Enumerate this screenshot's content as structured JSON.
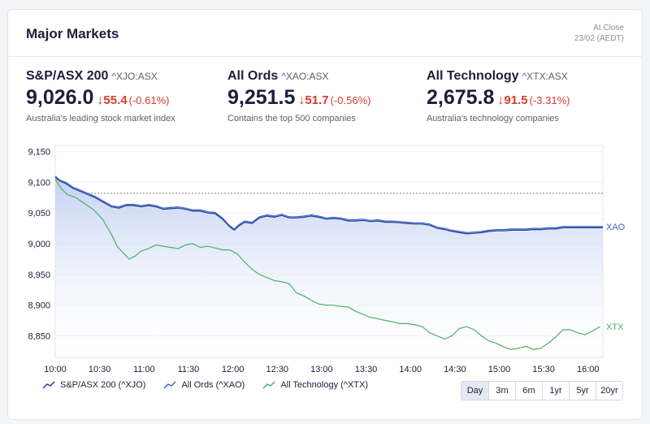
{
  "card_title": "Major Markets",
  "close_info": {
    "line1": "At Close",
    "line2": "23/02 (AEDT)"
  },
  "indices": [
    {
      "name": "S&P/ASX 200",
      "code": "^XJO:ASX",
      "price": "9,026.0",
      "change": "55.4",
      "pct": "(-0.61%)",
      "desc": "Australia's leading stock market index"
    },
    {
      "name": "All Ords",
      "code": "^XAO:ASX",
      "price": "9,251.5",
      "change": "51.7",
      "pct": "(-0.56%)",
      "desc": "Contains the top 500 companies"
    },
    {
      "name": "All Technology",
      "code": "^XTX:ASX",
      "price": "2,675.8",
      "change": "91.5",
      "pct": "(-3.31%)",
      "desc": "Australia's technology companies"
    }
  ],
  "legend": [
    {
      "label": "S&P/ASX 200 (^XJO)"
    },
    {
      "label": "All Ords (^XAO)"
    },
    {
      "label": "All Technology (^XTX)"
    }
  ],
  "ranges": [
    "Day",
    "3m",
    "6m",
    "1yr",
    "5yr",
    "20yr"
  ],
  "active_range": "Day",
  "colors": {
    "xjo": "#1f3a93",
    "xao": "#3f63c9",
    "xtx": "#4caf64",
    "down": "#d73b2f",
    "fill_top": "#bccbf0"
  },
  "chart_data": {
    "type": "line",
    "x": [
      "10:00",
      "10:30",
      "11:00",
      "11:30",
      "12:00",
      "12:30",
      "13:00",
      "13:30",
      "14:00",
      "14:30",
      "15:00",
      "15:30",
      "16:00"
    ],
    "yticks": [
      "9,150",
      "9,100",
      "9,050",
      "9,000",
      "8,950",
      "8,900",
      "8,850"
    ],
    "ylim": [
      8815,
      9160
    ],
    "xlim": [
      0,
      370
    ],
    "reference_line": 9082,
    "series_labels": [
      "XAO",
      "XTX"
    ],
    "series": [
      {
        "name": "S&P/ASX 200 (^XJO)",
        "points": [
          [
            0,
            9108
          ],
          [
            3,
            9102
          ],
          [
            7,
            9098
          ],
          [
            12,
            9090
          ],
          [
            17,
            9085
          ],
          [
            22,
            9080
          ],
          [
            27,
            9075
          ],
          [
            32,
            9068
          ],
          [
            38,
            9060
          ],
          [
            43,
            9058
          ],
          [
            48,
            9062
          ],
          [
            53,
            9062
          ],
          [
            58,
            9060
          ],
          [
            63,
            9062
          ],
          [
            68,
            9060
          ],
          [
            73,
            9056
          ],
          [
            78,
            9057
          ],
          [
            83,
            9058
          ],
          [
            88,
            9056
          ],
          [
            93,
            9053
          ],
          [
            98,
            9053
          ],
          [
            103,
            9050
          ],
          [
            108,
            9049
          ],
          [
            113,
            9040
          ],
          [
            118,
            9027
          ],
          [
            121,
            9022
          ],
          [
            124,
            9029
          ],
          [
            128,
            9035
          ],
          [
            133,
            9033
          ],
          [
            138,
            9042
          ],
          [
            143,
            9045
          ],
          [
            148,
            9043
          ],
          [
            153,
            9046
          ],
          [
            158,
            9042
          ],
          [
            163,
            9042
          ],
          [
            168,
            9043
          ],
          [
            173,
            9045
          ],
          [
            178,
            9043
          ],
          [
            183,
            9040
          ],
          [
            188,
            9041
          ],
          [
            193,
            9040
          ],
          [
            198,
            9037
          ],
          [
            203,
            9037
          ],
          [
            208,
            9038
          ],
          [
            213,
            9036
          ],
          [
            218,
            9037
          ],
          [
            223,
            9035
          ],
          [
            228,
            9035
          ],
          [
            233,
            9034
          ],
          [
            238,
            9033
          ],
          [
            243,
            9032
          ],
          [
            248,
            9032
          ],
          [
            253,
            9030
          ],
          [
            258,
            9025
          ],
          [
            263,
            9023
          ],
          [
            268,
            9020
          ],
          [
            273,
            9018
          ],
          [
            278,
            9016
          ],
          [
            283,
            9017
          ],
          [
            288,
            9018
          ],
          [
            293,
            9020
          ],
          [
            298,
            9021
          ],
          [
            303,
            9021
          ],
          [
            308,
            9022
          ],
          [
            313,
            9022
          ],
          [
            318,
            9022
          ],
          [
            323,
            9023
          ],
          [
            328,
            9023
          ],
          [
            333,
            9024
          ],
          [
            338,
            9024
          ],
          [
            343,
            9026
          ],
          [
            348,
            9026
          ],
          [
            353,
            9026
          ],
          [
            358,
            9026
          ],
          [
            363,
            9026
          ],
          [
            370,
            9026
          ]
        ]
      },
      {
        "name": "All Ords (^XAO)",
        "points": [
          [
            0,
            9110
          ],
          [
            3,
            9104
          ],
          [
            7,
            9100
          ],
          [
            12,
            9092
          ],
          [
            17,
            9087
          ],
          [
            22,
            9082
          ],
          [
            27,
            9077
          ],
          [
            32,
            9070
          ],
          [
            38,
            9062
          ],
          [
            43,
            9060
          ],
          [
            48,
            9064
          ],
          [
            53,
            9064
          ],
          [
            58,
            9062
          ],
          [
            63,
            9064
          ],
          [
            68,
            9062
          ],
          [
            73,
            9058
          ],
          [
            78,
            9059
          ],
          [
            83,
            9060
          ],
          [
            88,
            9058
          ],
          [
            93,
            9055
          ],
          [
            98,
            9055
          ],
          [
            103,
            9052
          ],
          [
            108,
            9051
          ],
          [
            113,
            9042
          ],
          [
            118,
            9029
          ],
          [
            121,
            9024
          ],
          [
            124,
            9031
          ],
          [
            128,
            9037
          ],
          [
            133,
            9035
          ],
          [
            138,
            9044
          ],
          [
            143,
            9047
          ],
          [
            148,
            9045
          ],
          [
            153,
            9048
          ],
          [
            158,
            9044
          ],
          [
            163,
            9044
          ],
          [
            168,
            9045
          ],
          [
            173,
            9047
          ],
          [
            178,
            9045
          ],
          [
            183,
            9042
          ],
          [
            188,
            9043
          ],
          [
            193,
            9042
          ],
          [
            198,
            9039
          ],
          [
            203,
            9039
          ],
          [
            208,
            9040
          ],
          [
            213,
            9038
          ],
          [
            218,
            9039
          ],
          [
            223,
            9037
          ],
          [
            228,
            9037
          ],
          [
            233,
            9036
          ],
          [
            238,
            9035
          ],
          [
            243,
            9034
          ],
          [
            248,
            9034
          ],
          [
            253,
            9032
          ],
          [
            258,
            9027
          ],
          [
            263,
            9025
          ],
          [
            268,
            9022
          ],
          [
            273,
            9020
          ],
          [
            278,
            9018
          ],
          [
            283,
            9019
          ],
          [
            288,
            9020
          ],
          [
            293,
            9022
          ],
          [
            298,
            9023
          ],
          [
            303,
            9023
          ],
          [
            308,
            9024
          ],
          [
            313,
            9024
          ],
          [
            318,
            9024
          ],
          [
            323,
            9025
          ],
          [
            328,
            9025
          ],
          [
            333,
            9026
          ],
          [
            338,
            9026
          ],
          [
            343,
            9028
          ],
          [
            348,
            9028
          ],
          [
            353,
            9028
          ],
          [
            358,
            9028
          ],
          [
            363,
            9028
          ],
          [
            370,
            9028
          ]
        ]
      },
      {
        "name": "All Technology (^XTX)",
        "points": [
          [
            0,
            9105
          ],
          [
            4,
            9090
          ],
          [
            8,
            9080
          ],
          [
            14,
            9075
          ],
          [
            20,
            9065
          ],
          [
            26,
            9055
          ],
          [
            32,
            9040
          ],
          [
            38,
            9015
          ],
          [
            42,
            8995
          ],
          [
            46,
            8985
          ],
          [
            50,
            8975
          ],
          [
            54,
            8980
          ],
          [
            58,
            8988
          ],
          [
            63,
            8992
          ],
          [
            68,
            8998
          ],
          [
            73,
            8996
          ],
          [
            78,
            8994
          ],
          [
            83,
            8992
          ],
          [
            88,
            8998
          ],
          [
            93,
            9000
          ],
          [
            98,
            8994
          ],
          [
            103,
            8996
          ],
          [
            108,
            8993
          ],
          [
            113,
            8990
          ],
          [
            118,
            8990
          ],
          [
            123,
            8983
          ],
          [
            128,
            8970
          ],
          [
            133,
            8958
          ],
          [
            138,
            8950
          ],
          [
            143,
            8945
          ],
          [
            148,
            8940
          ],
          [
            153,
            8938
          ],
          [
            158,
            8935
          ],
          [
            163,
            8920
          ],
          [
            168,
            8915
          ],
          [
            173,
            8908
          ],
          [
            178,
            8902
          ],
          [
            183,
            8900
          ],
          [
            188,
            8900
          ],
          [
            193,
            8898
          ],
          [
            198,
            8897
          ],
          [
            203,
            8890
          ],
          [
            208,
            8885
          ],
          [
            213,
            8880
          ],
          [
            218,
            8878
          ],
          [
            223,
            8875
          ],
          [
            228,
            8873
          ],
          [
            233,
            8870
          ],
          [
            238,
            8870
          ],
          [
            243,
            8868
          ],
          [
            248,
            8865
          ],
          [
            253,
            8855
          ],
          [
            258,
            8850
          ],
          [
            263,
            8845
          ],
          [
            268,
            8850
          ],
          [
            273,
            8862
          ],
          [
            278,
            8865
          ],
          [
            283,
            8860
          ],
          [
            288,
            8850
          ],
          [
            293,
            8842
          ],
          [
            298,
            8838
          ],
          [
            303,
            8832
          ],
          [
            308,
            8828
          ],
          [
            313,
            8830
          ],
          [
            318,
            8833
          ],
          [
            323,
            8828
          ],
          [
            328,
            8830
          ],
          [
            333,
            8838
          ],
          [
            338,
            8848
          ],
          [
            343,
            8860
          ],
          [
            348,
            8860
          ],
          [
            353,
            8855
          ],
          [
            358,
            8852
          ],
          [
            363,
            8858
          ],
          [
            368,
            8865
          ]
        ]
      }
    ]
  }
}
